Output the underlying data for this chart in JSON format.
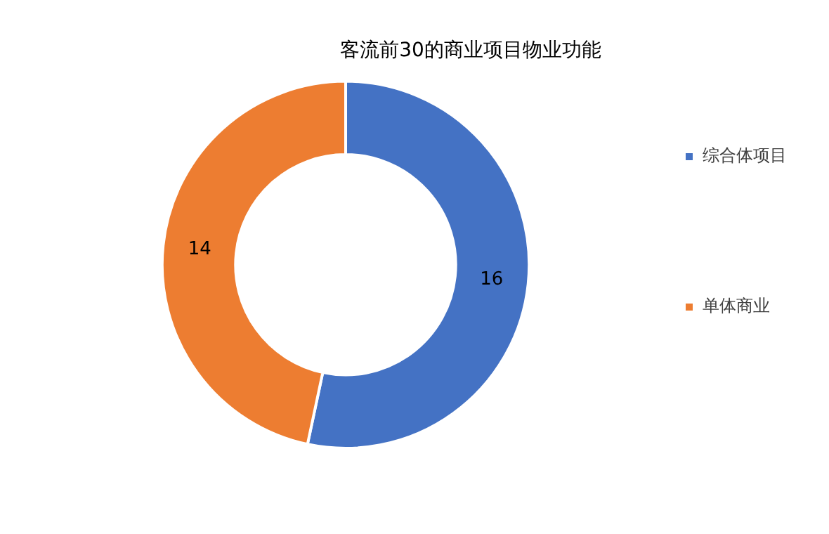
{
  "chart_data": {
    "type": "donut",
    "title": "客流前30的商业项目物业功能",
    "categories": [
      "综合体项目",
      "单体商业"
    ],
    "values": [
      16,
      14
    ],
    "colors": [
      "#4472c4",
      "#ed7d31"
    ],
    "data_labels": true,
    "legend": "right"
  }
}
